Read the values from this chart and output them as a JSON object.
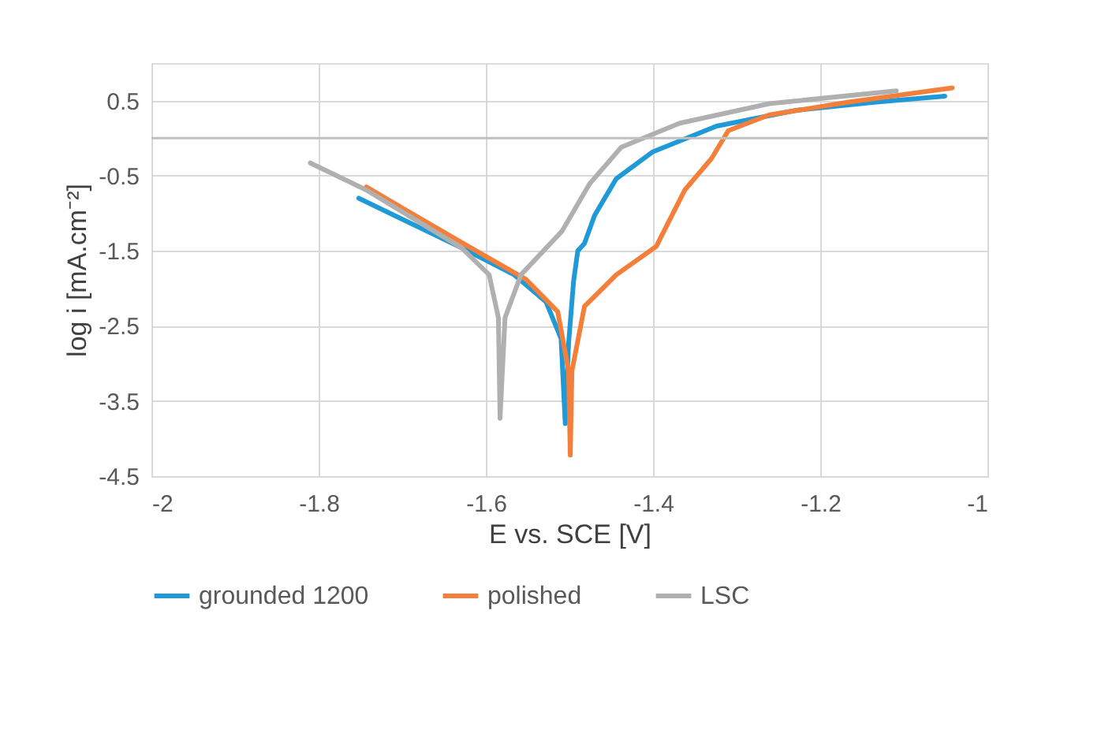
{
  "chart_data": {
    "type": "line",
    "xlabel": "E vs. SCE [V]",
    "ylabel": "log i [mA.cm⁻²]",
    "xlim": [
      -2,
      -1
    ],
    "xticks": [
      -2,
      -1.8,
      -1.6,
      -1.4,
      -1.2,
      -1
    ],
    "ylim": [
      -4.5,
      1
    ],
    "yticks": [
      -4.5,
      -3.5,
      -2.5,
      -1.5,
      -0.5,
      0.5
    ],
    "grid": true,
    "legend": "bottom",
    "line_style": "solid",
    "marker": "none",
    "ref_lines": [
      {
        "axis": "y",
        "value": 0,
        "label": null
      }
    ],
    "series": [
      {
        "name": "grounded 1200",
        "color": "#1f9ad6",
        "x": [
          -1.752,
          -1.629,
          -1.566,
          -1.528,
          -1.51,
          -1.505,
          -1.501,
          -1.495,
          -1.49,
          -1.482,
          -1.47,
          -1.444,
          -1.4,
          -1.324,
          -1.229,
          -1.133,
          -1.051
        ],
        "values": [
          -0.8,
          -1.46,
          -1.82,
          -2.18,
          -2.67,
          -3.8,
          -2.73,
          -1.9,
          -1.5,
          -1.4,
          -1.03,
          -0.54,
          -0.18,
          0.16,
          0.37,
          0.48,
          0.56
        ]
      },
      {
        "name": "polished",
        "color": "#f47f3a",
        "x": [
          -1.743,
          -1.629,
          -1.552,
          -1.514,
          -1.501,
          -1.499,
          -1.497,
          -1.482,
          -1.444,
          -1.396,
          -1.387,
          -1.362,
          -1.33,
          -1.31,
          -1.261,
          -1.166,
          -1.042
        ],
        "values": [
          -0.65,
          -1.39,
          -1.88,
          -2.31,
          -3.1,
          -4.22,
          -3.1,
          -2.24,
          -1.82,
          -1.44,
          -1.24,
          -0.69,
          -0.27,
          0.1,
          0.31,
          0.48,
          0.67
        ]
      },
      {
        "name": "LSC",
        "color": "#b0b0b0",
        "x": [
          -1.81,
          -1.743,
          -1.629,
          -1.596,
          -1.585,
          -1.583,
          -1.577,
          -1.558,
          -1.509,
          -1.476,
          -1.438,
          -1.368,
          -1.261,
          -1.109
        ],
        "values": [
          -0.33,
          -0.69,
          -1.46,
          -1.82,
          -2.39,
          -3.73,
          -2.39,
          -1.82,
          -1.24,
          -0.61,
          -0.12,
          0.2,
          0.46,
          0.63
        ]
      }
    ]
  }
}
